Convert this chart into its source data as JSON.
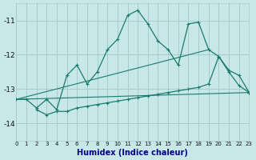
{
  "xlabel": "Humidex (Indice chaleur)",
  "bg_color": "#c8e8e8",
  "grid_color": "#a8cccc",
  "line_color": "#1a7a6e",
  "xlim": [
    0,
    23
  ],
  "ylim": [
    -14.5,
    -10.5
  ],
  "yticks": [
    -14,
    -13,
    -12,
    -11
  ],
  "xticks": [
    0,
    1,
    2,
    3,
    4,
    5,
    6,
    7,
    8,
    9,
    10,
    11,
    12,
    13,
    14,
    15,
    16,
    17,
    18,
    19,
    20,
    21,
    22,
    23
  ],
  "line1_x": [
    0,
    1,
    2,
    3,
    4,
    5,
    6,
    7,
    8,
    9,
    10,
    11,
    12,
    13,
    14,
    15,
    16,
    17,
    18,
    19,
    20,
    21,
    22,
    23
  ],
  "line1_y": [
    -13.3,
    -13.3,
    -13.55,
    -13.3,
    -13.6,
    -12.6,
    -12.3,
    -12.85,
    -12.5,
    -11.85,
    -11.55,
    -10.85,
    -10.7,
    -11.1,
    -11.6,
    -11.85,
    -12.3,
    -11.1,
    -11.05,
    -11.85,
    -12.05,
    -12.45,
    -12.6,
    -13.1
  ],
  "line2_x": [
    2,
    3,
    4,
    5,
    6,
    7,
    8,
    9,
    10,
    11,
    12,
    13,
    14,
    15,
    16,
    17,
    18,
    19,
    20,
    21,
    22,
    23
  ],
  "line2_y": [
    -13.6,
    -13.75,
    -13.65,
    -13.65,
    -13.55,
    -13.5,
    -13.45,
    -13.4,
    -13.35,
    -13.3,
    -13.25,
    -13.2,
    -13.15,
    -13.1,
    -13.05,
    -13.0,
    -12.95,
    -12.85,
    -12.05,
    -12.5,
    -12.9,
    -13.1
  ],
  "line3_x": [
    0,
    23
  ],
  "line3_y": [
    -13.3,
    -13.1
  ],
  "line4_x": [
    0,
    19
  ],
  "line4_y": [
    -13.3,
    -11.85
  ]
}
